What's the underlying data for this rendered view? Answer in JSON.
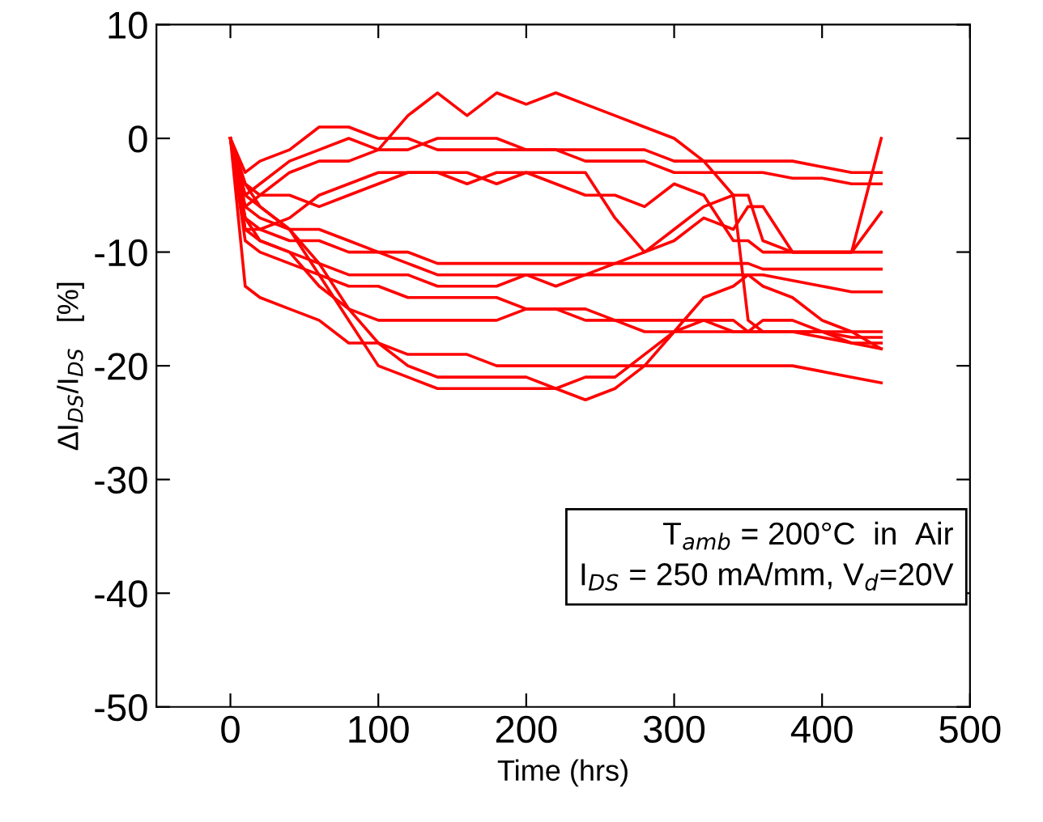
{
  "chart_data": {
    "type": "line",
    "xlabel": "Time (hrs)",
    "ylabel": "ΔI$_{DS}$/I$_{DS}$   [%]",
    "x": [
      0,
      10,
      20,
      40,
      60,
      80,
      100,
      120,
      140,
      160,
      180,
      200,
      220,
      240,
      260,
      280,
      300,
      320,
      340,
      350,
      360,
      380,
      400,
      420,
      440
    ],
    "xlim": [
      -50,
      500
    ],
    "xticks": [
      0,
      100,
      200,
      300,
      400,
      500
    ],
    "ylim": [
      -50,
      10
    ],
    "yticks": [
      -50,
      -40,
      -30,
      -20,
      -10,
      0,
      10
    ],
    "grid": false,
    "legend": false,
    "marker": "none",
    "line_style": "solid",
    "annotations": [
      "T$_{amb}$ = 200°C  in  Air",
      "I$_{DS}$ = 250 mA/mm, V$_{d}$=20V"
    ],
    "series": [
      {
        "color": "#ff0000",
        "values": [
          0,
          -4,
          -5,
          -3,
          -2,
          -2,
          -1,
          2,
          4,
          2,
          4,
          3,
          4,
          3,
          2,
          1,
          0,
          -2,
          -5,
          -16,
          -17,
          -17,
          -17.5,
          -18,
          -18.5
        ]
      },
      {
        "color": "#ff0000",
        "values": [
          0,
          -6,
          -7,
          -8,
          -8,
          -9,
          -10,
          -11,
          -12,
          -12,
          -12,
          -12,
          -13,
          -12,
          -11,
          -10,
          -9,
          -7,
          -8,
          -6,
          -6,
          -10,
          -10,
          -10,
          0
        ]
      },
      {
        "color": "#ff0000",
        "values": [
          0,
          -5,
          -4,
          -2,
          -1,
          0,
          -1,
          -1,
          0,
          0,
          0,
          -1,
          -1,
          -1,
          -1,
          -1,
          -2,
          -2,
          -2,
          -2,
          -2,
          -2,
          -2.5,
          -3,
          -3
        ]
      },
      {
        "color": "#ff0000",
        "values": [
          0,
          -3,
          -2,
          -1,
          1,
          1,
          0,
          0,
          -1,
          -1,
          -1,
          -1,
          -1,
          -2,
          -2,
          -2,
          -3,
          -3,
          -3,
          -3,
          -3,
          -3.5,
          -3.5,
          -4,
          -4
        ]
      },
      {
        "color": "#ff0000",
        "values": [
          0,
          -8,
          -8,
          -7,
          -5,
          -4,
          -3,
          -3,
          -3,
          -3,
          -4,
          -3,
          -3,
          -3,
          -7,
          -10,
          -8,
          -6,
          -5,
          -5,
          -9,
          -10,
          -10,
          -10,
          -6.5
        ]
      },
      {
        "color": "#ff0000",
        "values": [
          0,
          -6,
          -5,
          -5,
          -6,
          -5,
          -4,
          -3,
          -3,
          -4,
          -3,
          -3,
          -4,
          -5,
          -5,
          -6,
          -4,
          -5,
          -9,
          -9,
          -10,
          -10,
          -10,
          -10,
          -10
        ]
      },
      {
        "color": "#ff0000",
        "values": [
          0,
          -7,
          -8,
          -9,
          -9,
          -10,
          -10,
          -10,
          -11,
          -11,
          -11,
          -11,
          -11,
          -11,
          -11,
          -11,
          -11,
          -11,
          -11,
          -11,
          -11.5,
          -11.5,
          -11.5,
          -11.5,
          -11.5
        ]
      },
      {
        "color": "#ff0000",
        "values": [
          0,
          -8,
          -9,
          -10,
          -11,
          -12,
          -12,
          -12,
          -13,
          -13,
          -13,
          -12,
          -12,
          -12,
          -12,
          -12,
          -12,
          -12,
          -12,
          -12,
          -12,
          -12.5,
          -13,
          -13.5,
          -13.5
        ]
      },
      {
        "color": "#ff0000",
        "values": [
          0,
          -9,
          -10,
          -11,
          -12,
          -13,
          -13,
          -14,
          -14,
          -14,
          -14,
          -15,
          -15,
          -16,
          -16,
          -17,
          -17,
          -17,
          -17,
          -17,
          -17,
          -17,
          -17,
          -17,
          -17
        ]
      },
      {
        "color": "#ff0000",
        "values": [
          0,
          -7,
          -9,
          -10,
          -13,
          -15,
          -16,
          -16,
          -16,
          -16,
          -16,
          -15,
          -15,
          -15,
          -16,
          -16,
          -16,
          -16,
          -16,
          -17,
          -16,
          -16,
          -17,
          -18,
          -18
        ]
      },
      {
        "color": "#ff0000",
        "values": [
          0,
          -5,
          -6,
          -8,
          -12,
          -16,
          -20,
          -21,
          -22,
          -22,
          -22,
          -22,
          -22,
          -23,
          -22,
          -20,
          -17,
          -14,
          -13,
          -12,
          -13,
          -14,
          -16,
          -17,
          -18.5
        ]
      },
      {
        "color": "#ff0000",
        "values": [
          0,
          -13,
          -14,
          -15,
          -16,
          -18,
          -18,
          -19,
          -19,
          -19,
          -20,
          -20,
          -20,
          -20,
          -20,
          -20,
          -20,
          -20,
          -20,
          -20,
          -20,
          -20,
          -20.5,
          -21,
          -21.5
        ]
      },
      {
        "color": "#ff0000",
        "values": [
          0,
          -4,
          -6,
          -8,
          -11,
          -15,
          -18,
          -20,
          -21,
          -21,
          -21,
          -21,
          -22,
          -21,
          -21,
          -19,
          -17,
          -16,
          -17,
          -17,
          -17,
          -17,
          -17,
          -17.5,
          -17.5
        ]
      }
    ]
  }
}
